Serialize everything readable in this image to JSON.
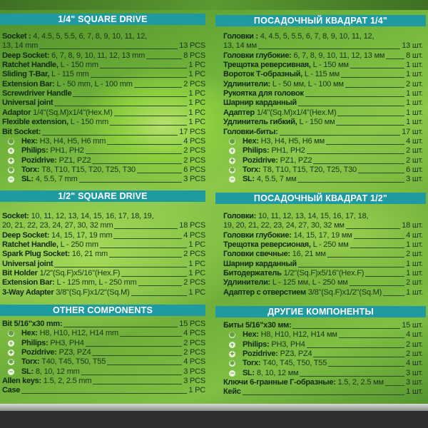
{
  "colors": {
    "header_bg": "#1f9aa0",
    "text": "#122a10",
    "background": "#7fbf44"
  },
  "left": [
    {
      "title": "1/4\" SQUARE DRIVE",
      "items": [
        {
          "name": "Socket :",
          "detail": "4, 4.5, 5, 5.5, 6, 7, 8, 9, 10, 11, 12,",
          "detail2": "13, 14 mm",
          "qty": "13 PCS"
        },
        {
          "name": "Deep Socket:",
          "detail": "6, 7, 8, 9, 10, 11, 12, 13 mm",
          "qty": "8 PCS"
        },
        {
          "name": "Ratchet Handle,",
          "detail": "L - 150 mm",
          "qty": "1 PC"
        },
        {
          "name": "Sliding T-Bar,",
          "detail": "L - 115 mm",
          "qty": "1 PC"
        },
        {
          "name": "Extension Bar:",
          "detail": "L - 50 mm, L - 100 mm",
          "qty": "2 PCS"
        },
        {
          "name": "Screwdriver Handle",
          "detail": "",
          "qty": "1 PC"
        },
        {
          "name": "Universal joint",
          "detail": "",
          "qty": "1 PC"
        },
        {
          "name": "Adaptor",
          "detail": "1/4\"(Sq.M)x1/4\"(Hex.M)",
          "qty": "1 PC"
        },
        {
          "name": "Flexible extension,",
          "detail": "L - 150 mm",
          "qty": "1 PC"
        },
        {
          "name": "Bit Socket:",
          "detail": "",
          "qty": "17 PCS"
        },
        {
          "icon": "hex",
          "name": "Hex:",
          "detail": "H3, H4, H5, H6 mm",
          "qty": "4 PCS"
        },
        {
          "icon": "philips",
          "name": "Philips:",
          "detail": "PH1, PH2",
          "qty": "2 PCS"
        },
        {
          "icon": "pozidrive",
          "name": "Pozidrive:",
          "detail": "PZ1, PZ2",
          "qty": "2 PCS"
        },
        {
          "icon": "torx",
          "name": "Torx:",
          "detail": "T8, T10, T15, T20, T25, T30",
          "qty": "6 PCS"
        },
        {
          "icon": "slotted",
          "name": "SL:",
          "detail": "4, 5.5, 7 mm",
          "qty": "3 PCS"
        }
      ]
    },
    {
      "title": "1/2\" SQUARE DRIVE",
      "items": [
        {
          "name": "Socket:",
          "detail": "10, 11, 12, 13, 14, 15, 16, 17, 18, 19,",
          "detail2": "20, 21, 22, 23, 24, 27, 30, 32 mm",
          "qty": "18 PCS"
        },
        {
          "name": "Deep Socket:",
          "detail": "14, 15, 17, 19  mm",
          "qty": "4 PCS"
        },
        {
          "name": "Ratchet Handle,",
          "detail": "L - 250 mm",
          "qty": "1 PC"
        },
        {
          "name": "Spark Plug Socket:",
          "detail": "16, 21 mm",
          "qty": "2 PCS"
        },
        {
          "name": "Universal joint",
          "detail": "",
          "qty": "1 PC"
        },
        {
          "name": "Bit Holder",
          "detail": "1/2\"(Sq.F)x5/16\"(Hex.F)",
          "qty": "1 PC"
        },
        {
          "name": "Extension Bar:",
          "detail": "L - 125 mm,  L - 250 mm",
          "qty": "2 PCS"
        },
        {
          "name": "3-Way Adapter",
          "detail": "3/8\"(Sq.F)x1/2\"(Sq.M)",
          "qty": "1 PC"
        }
      ]
    },
    {
      "title": "OTHER COMPONENTS",
      "items": [
        {
          "name": "Bit 5/16\"x30 mm:",
          "detail": "",
          "qty": "15 PCS"
        },
        {
          "icon": "hex",
          "name": "Hex:",
          "detail": "H8, H10, H12, H14 mm",
          "qty": "4 PCS"
        },
        {
          "icon": "philips",
          "name": "Philips:",
          "detail": "PH3, PH4",
          "qty": "2 PCS"
        },
        {
          "icon": "pozidrive",
          "name": "Pozidrive:",
          "detail": "PZ3, PZ4",
          "qty": "2 PCS"
        },
        {
          "icon": "torx",
          "name": "Torx:",
          "detail": "T40, T45, T50, T55",
          "qty": "4 PCS"
        },
        {
          "icon": "slotted",
          "name": "SL:",
          "detail": "8, 10, 12 mm",
          "qty": "3 PCS"
        },
        {
          "name": "Allen keys:",
          "detail": "1.5, 2, 2.5 mm",
          "qty": "3 PCS"
        },
        {
          "name": "Case",
          "detail": "",
          "qty": "1 PC"
        }
      ]
    }
  ],
  "right": [
    {
      "title": "ПОСАДОЧНЫЙ КВАДРАТ 1/4\"",
      "items": [
        {
          "name": "Головки :",
          "detail": "4, 4.5, 5, 5.5, 6, 7, 8, 9, 10, 11, 12,",
          "detail2": "13, 14 мм",
          "qty": "13 шт."
        },
        {
          "name": "Головки глубокие:",
          "detail": "6, 7, 8, 9, 10, 11, 12, 13 мм",
          "qty": "8 шт."
        },
        {
          "name": "Трещотка реверсивная,",
          "detail": "L - 150 мм",
          "qty": "1 шт."
        },
        {
          "name": "Вороток Т-образный,",
          "detail": "L - 115 мм",
          "qty": "1 шт."
        },
        {
          "name": "Удлинители:",
          "detail": "L - 50 мм, L - 100 мм",
          "qty": "2 шт."
        },
        {
          "name": "Рукоятка для головок",
          "detail": "",
          "qty": "1 шт."
        },
        {
          "name": "Шарнир карданный",
          "detail": "",
          "qty": "1 шт."
        },
        {
          "name": "Адаптер",
          "detail": "1/4\"(Sq.M)x1/4\"(Hex.M)",
          "qty": "1 шт."
        },
        {
          "name": "Удлинитель гибкий,",
          "detail": "L - 150 мм",
          "qty": "1 шт."
        },
        {
          "name": "Головки-биты:",
          "detail": "",
          "qty": "17 шт."
        },
        {
          "icon": "hex",
          "name": "Hex:",
          "detail": "H3, H4, H5, H6 мм",
          "qty": "4 шт."
        },
        {
          "icon": "philips",
          "name": "Philips:",
          "detail": "PH1, PH2",
          "qty": "2 шт."
        },
        {
          "icon": "pozidrive",
          "name": "Pozidrive:",
          "detail": "PZ1, PZ2",
          "qty": "2 шт."
        },
        {
          "icon": "torx",
          "name": "Torx:",
          "detail": "T8, T10, T15, T20, T25, T30",
          "qty": "6 шт."
        },
        {
          "icon": "slotted",
          "name": "SL:",
          "detail": "4, 5.5, 7 мм",
          "qty": "3 шт."
        }
      ]
    },
    {
      "title": "ПОСАДОЧНЫЙ КВАДРАТ 1/2\"",
      "items": [
        {
          "name": "Головки:",
          "detail": "10, 11, 12, 13, 14, 15, 16, 17, 18,",
          "detail2": "19, 20, 21, 22, 23, 24, 27, 30, 32 мм",
          "qty": "18 шт."
        },
        {
          "name": "Головки глубокие:",
          "detail": "14, 15, 17, 19  мм",
          "qty": "4 шт."
        },
        {
          "name": "Трещотка реверсионая,",
          "detail": "L - 250 мм",
          "qty": "1 шт."
        },
        {
          "name": "Головки свечные:",
          "detail": "16, 21 мм",
          "qty": "2 шт."
        },
        {
          "name": "Шарнир карданный",
          "detail": "",
          "qty": "1 шт."
        },
        {
          "name": "Битодержатель",
          "detail": "1/2\"(Sq.F)x5/16\"(Hex.F)",
          "qty": "1 шт."
        },
        {
          "name": "Удлинители:",
          "detail": "L - 125 мм,  L - 250 мм",
          "qty": "2 шт."
        },
        {
          "name": "Адаптер с отверстием",
          "detail": "3/8\"(Sq.F)x1/2\"(Sq.M)",
          "qty": "1 шт."
        }
      ]
    },
    {
      "title": "ДРУГИЕ КОМПОНЕНТЫ",
      "items": [
        {
          "name": "Биты 5/16\"x30 мм:",
          "detail": "",
          "qty": "15 шт."
        },
        {
          "icon": "hex",
          "name": "Hex:",
          "detail": "H8, H10, H12, H14 мм",
          "qty": "4 шт."
        },
        {
          "icon": "philips",
          "name": "Philips:",
          "detail": "PH3, PH4",
          "qty": "2 шт."
        },
        {
          "icon": "pozidrive",
          "name": "Pozidrive:",
          "detail": "PZ3, PZ4",
          "qty": "2 шт."
        },
        {
          "icon": "torx",
          "name": "Torx:",
          "detail": "T40, T45, T50, T55",
          "qty": "4 шт."
        },
        {
          "icon": "slotted",
          "name": "SL:",
          "detail": "8, 10, 12 мм",
          "qty": "3 шт."
        },
        {
          "name": "Ключи 6-гранные Г-образные:",
          "detail": "1.5, 2, 2.5 мм",
          "qty": "3 шт."
        },
        {
          "name": "Кейс",
          "detail": "",
          "qty": "1 шт."
        }
      ]
    }
  ]
}
